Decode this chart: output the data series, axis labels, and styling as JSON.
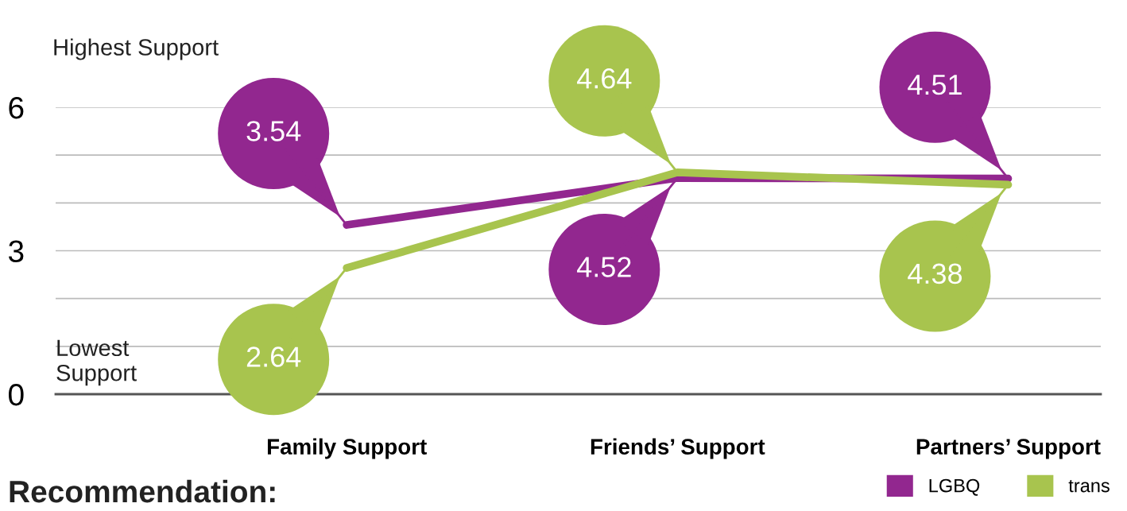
{
  "chart_data": {
    "type": "line",
    "categories": [
      "Family Support",
      "Friends’ Support",
      "Partners’ Support"
    ],
    "series": [
      {
        "name": "LGBQ",
        "color": "#92278f",
        "values": [
          3.54,
          4.52,
          4.51
        ]
      },
      {
        "name": "trans",
        "color": "#a8c44e",
        "values": [
          2.64,
          4.64,
          4.38
        ]
      }
    ],
    "ylim": [
      0,
      6
    ],
    "yticks": [
      0,
      {
        "value": 1,
        "label": null
      },
      {
        "value": 2,
        "label": null
      },
      3,
      {
        "value": 4,
        "label": null
      },
      {
        "value": 5,
        "label": null
      },
      6
    ],
    "grid": "y",
    "legend": "bottom right",
    "marker": "none",
    "line_style": "solid",
    "annotations": [
      "Highest Support",
      "Lowest\nSupport",
      "Recommendation:",
      {
        "text": "3.54",
        "x": "Family Support",
        "y": 3.54
      },
      {
        "text": "2.64",
        "x": "Family Support",
        "y": 2.64
      },
      {
        "text": "4.64",
        "x": "Friends’ Support",
        "y": 4.64
      },
      {
        "text": "4.52",
        "x": "Friends’ Support",
        "y": 4.52
      },
      {
        "text": "4.51",
        "x": "Partners’ Support",
        "y": 4.51
      },
      {
        "text": "4.38",
        "x": "Partners’ Support",
        "y": 4.38
      }
    ]
  }
}
